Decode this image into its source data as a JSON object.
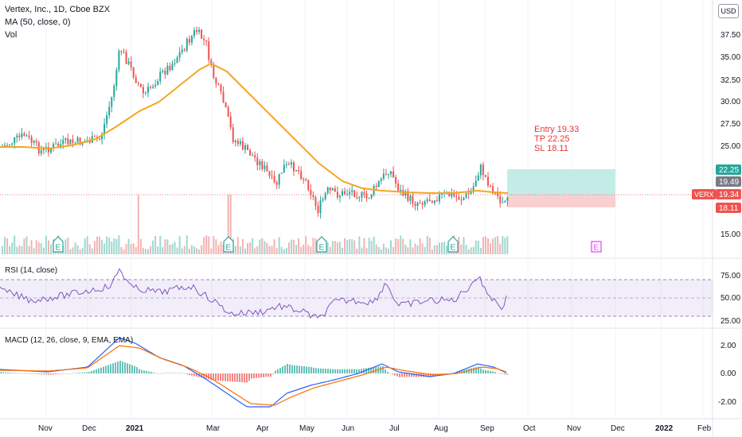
{
  "legend": {
    "title": "Vertex, Inc., 1D, Cboe BZX",
    "ma": "MA (50, close, 0)",
    "vol": "Vol"
  },
  "currency": "USD",
  "price_axis": {
    "ticks": [
      "37.50",
      "35.00",
      "32.50",
      "30.00",
      "27.50",
      "25.00",
      "15.00"
    ]
  },
  "price_labels": {
    "tp": "22.25",
    "close": "19.49",
    "current": "19.34",
    "sl": "18.11",
    "symbol": "VERX"
  },
  "annotation": {
    "entry": "Entry 19.33",
    "tp": "TP 22.25",
    "sl": "SL 18.11"
  },
  "earnings_marker": "E",
  "rsi": {
    "label": "RSI (14, close)",
    "ticks": [
      "75.00",
      "50.00",
      "25.00"
    ]
  },
  "macd": {
    "label": "MACD (12, 26, close, 9, EMA, EMA)",
    "ticks": [
      "2.00",
      "0.00",
      "-2.00"
    ]
  },
  "time_axis": [
    "Nov",
    "Dec",
    "2021",
    "Mar",
    "Apr",
    "May",
    "Jun",
    "Jul",
    "Aug",
    "Sep",
    "Oct",
    "Nov",
    "Dec",
    "2022",
    "Feb"
  ],
  "colors": {
    "up": "#26a69a",
    "down": "#ef5350",
    "ma": "#f5a623",
    "rsi": "#7e57c2",
    "macd": "#2962ff",
    "signal": "#ff6d00",
    "tp_zone": "#c3ece7",
    "sl_zone": "#f9d0d0",
    "annotation": "#e53935",
    "earnings": "#26a69a",
    "earnings_future": "#e040fb"
  }
}
